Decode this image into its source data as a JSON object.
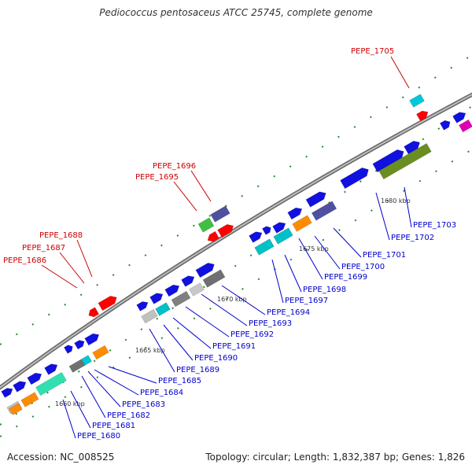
{
  "title": "Pediococcus pentosaceus ATCC 25745, complete genome",
  "footer": {
    "accession": "Accession: NC_008525",
    "summary": "Topology: circular; Length: 1,832,387 bp; Genes: 1,826"
  },
  "colors": {
    "backbone": "#8a8a8a",
    "tick": "#2a8a2a",
    "label_highlight": "#cc0000",
    "label_normal": "#0000cc",
    "leader_highlight": "#cc0000",
    "leader_normal": "#0000cc"
  },
  "kbp_markers": [
    "1660 kbp",
    "1665 kbp",
    "1670 kbp",
    "1675 kbp",
    "1680 kbp"
  ],
  "red_labels": [
    "PEPE_1705",
    "PEPE_1696",
    "PEPE_1695",
    "PEPE_1688",
    "PEPE_1687",
    "PEPE_1686"
  ],
  "blue_labels": [
    "PEPE_1703",
    "PEPE_1702",
    "PEPE_1701",
    "PEPE_1700",
    "PEPE_1699",
    "PEPE_1698",
    "PEPE_1697",
    "PEPE_1694",
    "PEPE_1693",
    "PEPE_1692",
    "PEPE_1691",
    "PEPE_1690",
    "PEPE_1689",
    "PEPE_1685",
    "PEPE_1684",
    "PEPE_1683",
    "PEPE_1682",
    "PEPE_1681",
    "PEPE_1680"
  ]
}
